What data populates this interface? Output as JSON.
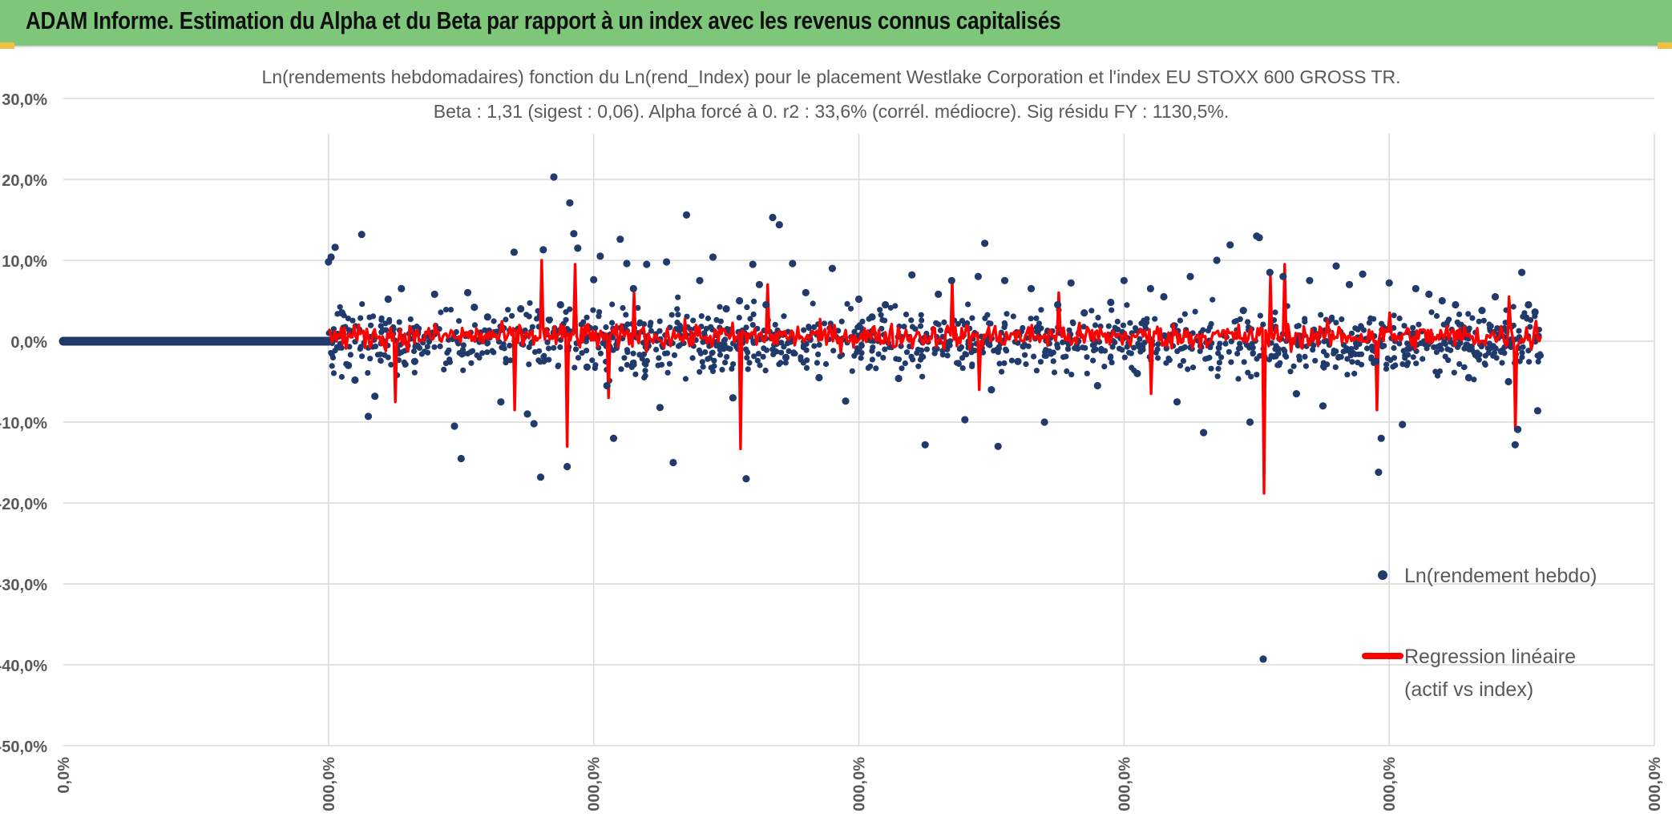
{
  "banner": {
    "title": "ADAM Informe. Estimation du Alpha et du Beta par rapport à un index avec les revenus connus capitalisés",
    "color": "#7dc67a"
  },
  "chart_data": {
    "type": "scatter",
    "title": "Ln(rendements hebdomadaires) fonction du Ln(rend_Index) pour le placement Westlake Corporation et l'index EU STOXX 600 GROSS TR.",
    "subtitle": "Beta : 1,31 (sigest : 0,06). Alpha forcé à 0. r2 : 33,6% (corrél. médiocre). Sig résidu FY : 1130,5%.",
    "ylim": [
      -50,
      30
    ],
    "yticks": [
      30,
      20,
      10,
      0,
      -10,
      -20,
      -30,
      -40,
      -50
    ],
    "ytick_labels": [
      "30,0%",
      "20,0%",
      "10,0%",
      "0,0%",
      "-10,0%",
      "-20,0%",
      "-30,0%",
      "-40,0%",
      "-50,0%"
    ],
    "xtick_labels": [
      "0,0%",
      "000,0%",
      "000,0%",
      "000,0%",
      "000,0%",
      "000,0%",
      "000,0%",
      "000,0%",
      "000,0%"
    ],
    "grid": true,
    "legend_position": "right",
    "series": [
      {
        "name": "Ln(rendement hebdo)",
        "kind": "scatter",
        "color": "#1f3a6b",
        "flat_segment": {
          "x_from": 0,
          "x_to": 2,
          "y": 0
        },
        "points": [
          [
            2.0,
            9.8
          ],
          [
            2.02,
            10.4
          ],
          [
            2.05,
            11.6
          ],
          [
            2.1,
            3.5
          ],
          [
            2.15,
            -3.0
          ],
          [
            2.2,
            -4.8
          ],
          [
            2.25,
            13.2
          ],
          [
            2.3,
            -9.3
          ],
          [
            2.35,
            -6.8
          ],
          [
            2.45,
            5.2
          ],
          [
            2.55,
            6.5
          ],
          [
            2.65,
            -2.5
          ],
          [
            2.8,
            5.8
          ],
          [
            2.95,
            -10.5
          ],
          [
            3.0,
            -14.5
          ],
          [
            3.05,
            6.0
          ],
          [
            3.1,
            4.2
          ],
          [
            3.2,
            3.0
          ],
          [
            3.3,
            -7.5
          ],
          [
            3.4,
            11.0
          ],
          [
            3.45,
            4.0
          ],
          [
            3.5,
            -9.0
          ],
          [
            3.55,
            -10.2
          ],
          [
            3.6,
            -16.8
          ],
          [
            3.62,
            11.3
          ],
          [
            3.7,
            20.3
          ],
          [
            3.75,
            4.5
          ],
          [
            3.8,
            -15.5
          ],
          [
            3.82,
            17.1
          ],
          [
            3.85,
            13.3
          ],
          [
            3.88,
            11.5
          ],
          [
            3.95,
            -3.2
          ],
          [
            4.0,
            7.6
          ],
          [
            4.05,
            10.5
          ],
          [
            4.1,
            -5.5
          ],
          [
            4.15,
            -12.0
          ],
          [
            4.2,
            12.6
          ],
          [
            4.25,
            9.6
          ],
          [
            4.3,
            6.5
          ],
          [
            4.4,
            9.5
          ],
          [
            4.5,
            -8.2
          ],
          [
            4.55,
            9.8
          ],
          [
            4.6,
            -15.0
          ],
          [
            4.7,
            15.6
          ],
          [
            4.8,
            7.5
          ],
          [
            4.9,
            10.4
          ],
          [
            5.0,
            4.0
          ],
          [
            5.05,
            -7.0
          ],
          [
            5.1,
            5.0
          ],
          [
            5.15,
            -17.0
          ],
          [
            5.2,
            9.5
          ],
          [
            5.25,
            7.0
          ],
          [
            5.3,
            4.5
          ],
          [
            5.35,
            15.3
          ],
          [
            5.4,
            14.4
          ],
          [
            5.45,
            -2.0
          ],
          [
            5.5,
            9.6
          ],
          [
            5.6,
            6.0
          ],
          [
            5.7,
            -4.5
          ],
          [
            5.8,
            9.0
          ],
          [
            5.9,
            -7.4
          ],
          [
            6.0,
            5.2
          ],
          [
            6.1,
            3.0
          ],
          [
            6.2,
            4.5
          ],
          [
            6.3,
            -4.6
          ],
          [
            6.4,
            8.2
          ],
          [
            6.5,
            -12.8
          ],
          [
            6.6,
            5.8
          ],
          [
            6.7,
            7.5
          ],
          [
            6.8,
            -9.7
          ],
          [
            6.9,
            8.0
          ],
          [
            6.95,
            12.1
          ],
          [
            7.0,
            -6.0
          ],
          [
            7.05,
            -13.0
          ],
          [
            7.1,
            7.5
          ],
          [
            7.2,
            -2.5
          ],
          [
            7.3,
            6.5
          ],
          [
            7.4,
            -10.0
          ],
          [
            7.5,
            4.5
          ],
          [
            7.6,
            7.2
          ],
          [
            7.7,
            3.5
          ],
          [
            7.8,
            -5.5
          ],
          [
            7.9,
            4.8
          ],
          [
            8.0,
            7.5
          ],
          [
            8.1,
            -4.0
          ],
          [
            8.2,
            6.5
          ],
          [
            8.3,
            5.5
          ],
          [
            8.4,
            -7.5
          ],
          [
            8.5,
            8.0
          ],
          [
            8.6,
            -11.3
          ],
          [
            8.7,
            10.0
          ],
          [
            8.8,
            11.9
          ],
          [
            8.9,
            3.8
          ],
          [
            8.95,
            -10.0
          ],
          [
            9.0,
            13.0
          ],
          [
            9.02,
            12.8
          ],
          [
            9.05,
            -39.3
          ],
          [
            9.1,
            8.5
          ],
          [
            9.2,
            8.0
          ],
          [
            9.3,
            -6.5
          ],
          [
            9.4,
            7.5
          ],
          [
            9.5,
            -8.0
          ],
          [
            9.6,
            9.3
          ],
          [
            9.7,
            7.0
          ],
          [
            9.8,
            8.3
          ],
          [
            9.9,
            -2.5
          ],
          [
            9.92,
            -16.2
          ],
          [
            9.94,
            -12.0
          ],
          [
            10.0,
            7.2
          ],
          [
            10.1,
            -10.3
          ],
          [
            10.2,
            6.5
          ],
          [
            10.3,
            5.8
          ],
          [
            10.4,
            5.0
          ],
          [
            10.5,
            4.5
          ],
          [
            10.6,
            -4.5
          ],
          [
            10.7,
            3.8
          ],
          [
            10.8,
            5.5
          ],
          [
            10.9,
            -5.0
          ],
          [
            10.95,
            -12.8
          ],
          [
            10.97,
            -10.9
          ],
          [
            11.0,
            8.5
          ],
          [
            11.05,
            4.5
          ],
          [
            11.1,
            3.6
          ],
          [
            11.12,
            -8.6
          ]
        ]
      },
      {
        "name": "Regression linéaire (actif vs index)",
        "legend_lines": [
          "Regression linéaire",
          "(actif vs index)"
        ],
        "kind": "line",
        "color": "#ff0000",
        "spikes": [
          [
            2.0,
            1.5
          ],
          [
            2.5,
            -7.5
          ],
          [
            3.4,
            -8.5
          ],
          [
            3.6,
            10.0
          ],
          [
            3.8,
            -13.0
          ],
          [
            3.85,
            9.5
          ],
          [
            4.1,
            -7.0
          ],
          [
            4.3,
            6.0
          ],
          [
            5.1,
            -13.3
          ],
          [
            5.3,
            7.0
          ],
          [
            6.7,
            7.5
          ],
          [
            6.9,
            -6.0
          ],
          [
            7.5,
            6.0
          ],
          [
            8.2,
            -6.5
          ],
          [
            9.05,
            -18.8
          ],
          [
            9.1,
            8.0
          ],
          [
            9.2,
            9.5
          ],
          [
            9.9,
            -8.5
          ],
          [
            10.0,
            3.5
          ],
          [
            10.9,
            5.5
          ],
          [
            10.95,
            -11.0
          ],
          [
            11.1,
            2.5
          ]
        ]
      }
    ],
    "x_range": [
      0,
      12
    ]
  }
}
